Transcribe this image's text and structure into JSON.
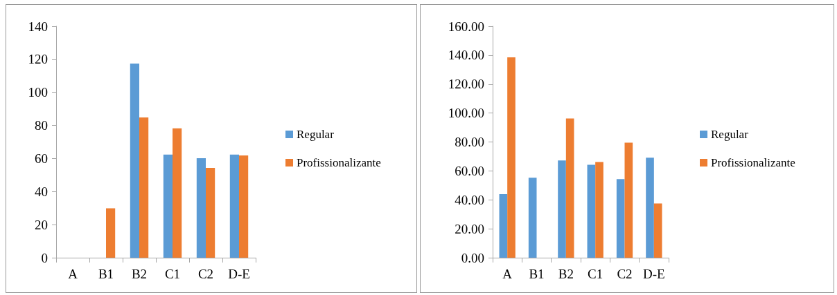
{
  "chart_data": [
    {
      "type": "bar",
      "categories": [
        "A",
        "B1",
        "B2",
        "C1",
        "C2",
        "D-E"
      ],
      "series": [
        {
          "name": "Regular",
          "color": "#5b9bd5",
          "values": [
            0,
            0,
            117.4,
            62.4,
            60.2,
            62.4
          ]
        },
        {
          "name": "Profissionalizante",
          "color": "#ed7d31",
          "values": [
            0,
            29.9,
            84.8,
            78.3,
            54.3,
            61.8
          ]
        }
      ],
      "ylim": [
        0,
        140
      ],
      "yticks": [
        0,
        20,
        40,
        60,
        80,
        100,
        120,
        140
      ],
      "grid": false,
      "legend": "right"
    },
    {
      "type": "bar",
      "categories": [
        "A",
        "B1",
        "B2",
        "C1",
        "C2",
        "D-E"
      ],
      "series": [
        {
          "name": "Regular",
          "color": "#5b9bd5",
          "values": [
            44.0,
            55.3,
            67.2,
            64.2,
            54.3,
            69.1
          ]
        },
        {
          "name": "Profissionalizante",
          "color": "#ed7d31",
          "values": [
            138.5,
            0,
            96.2,
            66.2,
            79.5,
            37.5
          ]
        }
      ],
      "ylim": [
        0,
        160
      ],
      "yticks": [
        {
          "value": 0,
          "label": "0.00"
        },
        {
          "value": 20,
          "label": "20.00"
        },
        {
          "value": 40,
          "label": "40.00"
        },
        {
          "value": 60,
          "label": "60.00"
        },
        {
          "value": 80,
          "label": "80.00"
        },
        {
          "value": 100,
          "label": "100.00"
        },
        {
          "value": 120,
          "label": "120.00"
        },
        {
          "value": 140,
          "label": "140.00"
        },
        {
          "value": 160,
          "label": "160.00"
        }
      ],
      "grid": false,
      "legend": "right"
    }
  ]
}
